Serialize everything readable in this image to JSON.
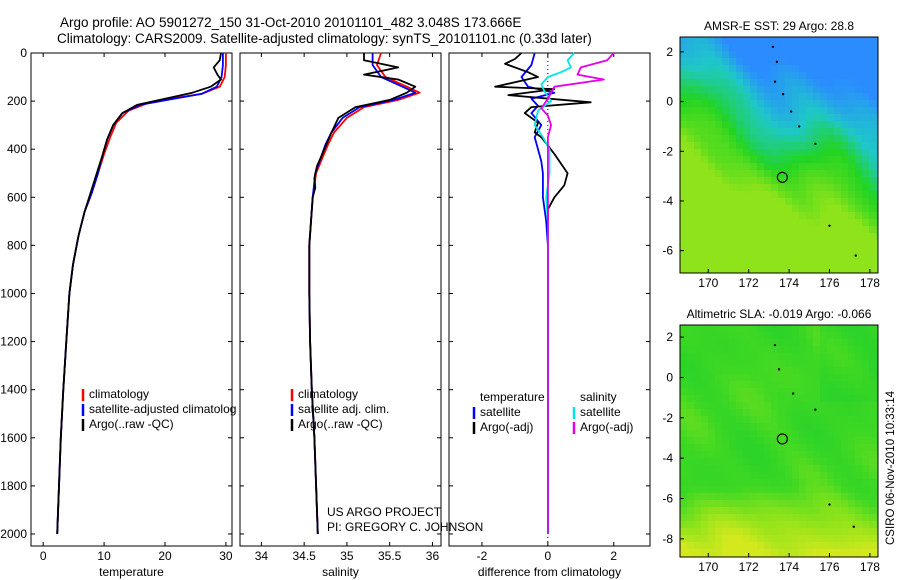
{
  "header": {
    "line1": "Argo profile: AO 5901272_150 31-Oct-2010 20101101_482 3.048S 173.666E",
    "line2": "Climatology: CARS2009. Satellite-adjusted climatology: synTS_20101101.nc (0.33d later)"
  },
  "credits": {
    "project": "US ARGO PROJECT",
    "pi": "PI: GREGORY C. JOHNSON",
    "stamp": "CSIRO 06-Nov-2010 10:33:14"
  },
  "colors": {
    "climatology": "#ff0000",
    "satellite": "#0000ff",
    "argo": "#000000",
    "sal_satellite": "#00e5e5",
    "sal_argo": "#e600e6"
  },
  "chart_data": [
    {
      "type": "line",
      "id": "temperature",
      "title": "",
      "xlabel": "temperature",
      "ylabel": "",
      "xlim": [
        -2,
        31
      ],
      "ylim": [
        2050,
        0
      ],
      "xticks": [
        "0",
        "10",
        "20",
        "30"
      ],
      "xtick_values": [
        0,
        10,
        20,
        30
      ],
      "yticks": [
        "0",
        "200",
        "400",
        "600",
        "800",
        "1000",
        "1200",
        "1400",
        "1600",
        "1800",
        "2000"
      ],
      "ytick_values": [
        0,
        200,
        400,
        600,
        800,
        1000,
        1200,
        1400,
        1600,
        1800,
        2000
      ],
      "legend": [
        "climatology",
        "satellite-adjusted climatolog",
        "Argo(..raw -QC)"
      ],
      "series": [
        {
          "name": "climatology",
          "color": "#ff0000",
          "points": [
            [
              30.0,
              0
            ],
            [
              30.0,
              50
            ],
            [
              29.8,
              100
            ],
            [
              29.0,
              140
            ],
            [
              26.0,
              170
            ],
            [
              21.0,
              190
            ],
            [
              17.0,
              210
            ],
            [
              14.0,
              240
            ],
            [
              12.0,
              290
            ],
            [
              11.0,
              350
            ],
            [
              10.0,
              420
            ],
            [
              9.0,
              500
            ],
            [
              8.0,
              580
            ],
            [
              6.8,
              660
            ],
            [
              5.8,
              760
            ],
            [
              4.9,
              880
            ],
            [
              4.3,
              1000
            ],
            [
              3.8,
              1200
            ],
            [
              3.3,
              1400
            ],
            [
              2.9,
              1600
            ],
            [
              2.6,
              1800
            ],
            [
              2.3,
              2000
            ]
          ]
        },
        {
          "name": "satellite-adjusted climatology",
          "color": "#0000ff",
          "points": [
            [
              29.5,
              0
            ],
            [
              29.5,
              50
            ],
            [
              29.3,
              100
            ],
            [
              28.5,
              140
            ],
            [
              26.0,
              170
            ],
            [
              21.0,
              192
            ],
            [
              16.0,
              215
            ],
            [
              13.0,
              250
            ],
            [
              11.5,
              300
            ],
            [
              10.5,
              360
            ],
            [
              9.8,
              420
            ],
            [
              9.0,
              500
            ],
            [
              8.0,
              580
            ],
            [
              6.8,
              660
            ],
            [
              5.8,
              760
            ],
            [
              4.9,
              880
            ],
            [
              4.3,
              1000
            ],
            [
              3.8,
              1200
            ],
            [
              3.3,
              1400
            ],
            [
              2.9,
              1600
            ],
            [
              2.6,
              1800
            ],
            [
              2.3,
              2000
            ]
          ]
        },
        {
          "name": "Argo(..raw -QC)",
          "color": "#000000",
          "points": [
            [
              29.2,
              0
            ],
            [
              29.0,
              30
            ],
            [
              28.0,
              60
            ],
            [
              28.6,
              90
            ],
            [
              29.2,
              110
            ],
            [
              27.5,
              140
            ],
            [
              24.5,
              165
            ],
            [
              20.0,
              190
            ],
            [
              15.5,
              215
            ],
            [
              13.0,
              250
            ],
            [
              11.5,
              300
            ],
            [
              10.5,
              360
            ],
            [
              9.8,
              420
            ],
            [
              8.8,
              500
            ],
            [
              7.8,
              580
            ],
            [
              6.8,
              660
            ],
            [
              5.8,
              760
            ],
            [
              4.9,
              880
            ],
            [
              4.3,
              1000
            ],
            [
              3.8,
              1200
            ],
            [
              3.3,
              1400
            ],
            [
              2.9,
              1600
            ],
            [
              2.6,
              1800
            ],
            [
              2.3,
              2000
            ]
          ]
        }
      ]
    },
    {
      "type": "line",
      "id": "salinity",
      "title": "",
      "xlabel": "salinity",
      "ylabel": "",
      "xlim": [
        33.75,
        36.1
      ],
      "ylim": [
        2050,
        0
      ],
      "xticks": [
        "34",
        "34.5",
        "35",
        "35.5",
        "36"
      ],
      "xtick_values": [
        34,
        34.5,
        35,
        35.5,
        36
      ],
      "legend": [
        "climatology",
        "satellite adj. clim.",
        "Argo(..raw -QC)"
      ],
      "series": [
        {
          "name": "climatology",
          "color": "#ff0000",
          "points": [
            [
              35.4,
              0
            ],
            [
              35.35,
              50
            ],
            [
              35.45,
              100
            ],
            [
              35.7,
              140
            ],
            [
              35.85,
              165
            ],
            [
              35.6,
              195
            ],
            [
              35.2,
              225
            ],
            [
              35.0,
              270
            ],
            [
              34.85,
              330
            ],
            [
              34.78,
              380
            ],
            [
              34.72,
              430
            ],
            [
              34.64,
              500
            ],
            [
              34.6,
              600
            ],
            [
              34.58,
              700
            ],
            [
              34.56,
              800
            ],
            [
              34.56,
              1000
            ],
            [
              34.57,
              1200
            ],
            [
              34.59,
              1400
            ],
            [
              34.62,
              1600
            ],
            [
              34.64,
              1800
            ],
            [
              34.66,
              2000
            ]
          ]
        },
        {
          "name": "satellite adj. clim.",
          "color": "#0000ff",
          "points": [
            [
              35.3,
              0
            ],
            [
              35.3,
              50
            ],
            [
              35.4,
              100
            ],
            [
              35.65,
              140
            ],
            [
              35.8,
              165
            ],
            [
              35.55,
              195
            ],
            [
              35.15,
              225
            ],
            [
              34.95,
              270
            ],
            [
              34.82,
              330
            ],
            [
              34.75,
              380
            ],
            [
              34.7,
              430
            ],
            [
              34.63,
              500
            ],
            [
              34.6,
              600
            ],
            [
              34.58,
              700
            ],
            [
              34.56,
              800
            ],
            [
              34.56,
              1000
            ],
            [
              34.57,
              1200
            ],
            [
              34.59,
              1400
            ],
            [
              34.62,
              1600
            ],
            [
              34.64,
              1800
            ],
            [
              34.66,
              2000
            ]
          ]
        },
        {
          "name": "Argo(..raw -QC)",
          "color": "#000000",
          "points": [
            [
              35.2,
              0
            ],
            [
              35.2,
              30
            ],
            [
              35.6,
              60
            ],
            [
              35.2,
              90
            ],
            [
              35.6,
              110
            ],
            [
              35.8,
              140
            ],
            [
              35.7,
              165
            ],
            [
              35.5,
              195
            ],
            [
              35.1,
              225
            ],
            [
              34.9,
              270
            ],
            [
              34.82,
              330
            ],
            [
              34.76,
              380
            ],
            [
              34.7,
              430
            ],
            [
              34.65,
              470
            ],
            [
              34.62,
              520
            ],
            [
              34.63,
              560
            ],
            [
              34.6,
              600
            ],
            [
              34.58,
              700
            ],
            [
              34.56,
              800
            ],
            [
              34.56,
              1000
            ],
            [
              34.57,
              1200
            ],
            [
              34.59,
              1400
            ],
            [
              34.62,
              1600
            ],
            [
              34.64,
              1800
            ],
            [
              34.66,
              2000
            ]
          ]
        }
      ]
    },
    {
      "type": "line",
      "id": "difference",
      "title": "",
      "xlabel": "difference from climatology",
      "ylabel": "",
      "xlim": [
        -3,
        3.1
      ],
      "ylim": [
        2050,
        0
      ],
      "xticks": [
        "-2",
        "0",
        "2"
      ],
      "xtick_values": [
        -2,
        0,
        2
      ],
      "legend_groups": [
        {
          "heading": "temperature",
          "items": [
            "satellite",
            "Argo(-adj)"
          ]
        },
        {
          "heading": "salinity",
          "items": [
            "satellite",
            "Argo(-adj)"
          ]
        }
      ],
      "series": [
        {
          "name": "temperature satellite",
          "color": "#0000ff",
          "points": [
            [
              -0.4,
              0
            ],
            [
              -0.5,
              50
            ],
            [
              -0.8,
              100
            ],
            [
              -0.6,
              140
            ],
            [
              0.2,
              165
            ],
            [
              -0.5,
              190
            ],
            [
              -0.3,
              220
            ],
            [
              -0.5,
              250
            ],
            [
              -0.2,
              300
            ],
            [
              -0.4,
              350
            ],
            [
              -0.3,
              400
            ],
            [
              -0.2,
              450
            ],
            [
              -0.15,
              500
            ],
            [
              -0.15,
              600
            ],
            [
              -0.05,
              700
            ],
            [
              0.0,
              800
            ],
            [
              0.0,
              2000
            ]
          ]
        },
        {
          "name": "temperature Argo(-adj)",
          "color": "#000000",
          "points": [
            [
              -0.8,
              0
            ],
            [
              -1.0,
              25
            ],
            [
              -1.3,
              45
            ],
            [
              -0.6,
              80
            ],
            [
              -0.3,
              100
            ],
            [
              -1.6,
              140
            ],
            [
              0.2,
              150
            ],
            [
              -1.2,
              175
            ],
            [
              1.3,
              205
            ],
            [
              -0.5,
              225
            ],
            [
              -0.7,
              250
            ],
            [
              -0.3,
              290
            ],
            [
              -0.4,
              330
            ],
            [
              -0.2,
              350
            ],
            [
              0.2,
              420
            ],
            [
              0.6,
              500
            ],
            [
              0.5,
              550
            ],
            [
              0.2,
              600
            ],
            [
              0.0,
              650
            ],
            [
              0.0,
              2000
            ]
          ]
        },
        {
          "name": "salinity satellite",
          "color": "#00e5e5",
          "points": [
            [
              0.8,
              0
            ],
            [
              0.6,
              30
            ],
            [
              0.7,
              60
            ],
            [
              0.4,
              80
            ],
            [
              0.0,
              100
            ],
            [
              -0.2,
              130
            ],
            [
              -0.1,
              160
            ],
            [
              0.1,
              200
            ],
            [
              -0.3,
              240
            ],
            [
              -0.4,
              300
            ],
            [
              -0.15,
              350
            ],
            [
              0.05,
              400
            ],
            [
              0.05,
              500
            ],
            [
              -0.05,
              600
            ],
            [
              0.0,
              700
            ],
            [
              0.0,
              2000
            ]
          ]
        },
        {
          "name": "salinity Argo(-adj)",
          "color": "#e600e6",
          "points": [
            [
              2.0,
              0
            ],
            [
              1.8,
              30
            ],
            [
              1.0,
              60
            ],
            [
              0.9,
              90
            ],
            [
              1.7,
              110
            ],
            [
              0.2,
              140
            ],
            [
              0.0,
              190
            ],
            [
              -0.2,
              230
            ],
            [
              0.0,
              260
            ],
            [
              0.1,
              300
            ],
            [
              0.0,
              350
            ],
            [
              0.0,
              2000
            ]
          ]
        }
      ]
    },
    {
      "type": "heatmap",
      "id": "amsre",
      "title": "AMSR-E SST: 29 Argo: 28.8",
      "xlim": [
        168.6,
        178.4
      ],
      "ylim": [
        -6.9,
        2.6
      ],
      "xticks": [
        "170",
        "172",
        "174",
        "176",
        "178"
      ],
      "xtick_values": [
        170,
        172,
        174,
        176,
        178
      ],
      "yticks": [
        "2",
        "0",
        "-2",
        "-4",
        "-6"
      ],
      "ytick_values": [
        2,
        0,
        -2,
        -4,
        -6
      ],
      "float_position": [
        173.666,
        -3.048
      ],
      "track": [
        [
          173.2,
          2.2
        ],
        [
          173.4,
          1.6
        ],
        [
          173.3,
          0.8
        ],
        [
          173.7,
          0.3
        ],
        [
          174.1,
          -0.4
        ],
        [
          174.5,
          -1.0
        ],
        [
          175.3,
          -1.7
        ],
        [
          176.0,
          -5.0
        ],
        [
          177.3,
          -6.2
        ]
      ],
      "color_scale": [
        "#2a8cff",
        "#1ec8c8",
        "#22d422",
        "#8ee31a"
      ]
    },
    {
      "type": "heatmap",
      "id": "altimetric",
      "title": "Altimetric SLA: -0.019 Argo: -0.066",
      "xlim": [
        168.6,
        178.4
      ],
      "ylim": [
        -8.9,
        2.6
      ],
      "xticks": [
        "170",
        "172",
        "174",
        "176",
        "178"
      ],
      "xtick_values": [
        170,
        172,
        174,
        176,
        178
      ],
      "yticks": [
        "2",
        "0",
        "-2",
        "-4",
        "-6",
        "-8"
      ],
      "ytick_values": [
        2,
        0,
        -2,
        -4,
        -6,
        -8
      ],
      "float_position": [
        173.666,
        -3.048
      ],
      "track": [
        [
          173.3,
          1.6
        ],
        [
          173.5,
          0.4
        ],
        [
          174.2,
          -0.8
        ],
        [
          175.3,
          -1.6
        ],
        [
          176.0,
          -6.3
        ],
        [
          177.2,
          -7.4
        ]
      ],
      "color_scale": [
        "#1ecf2d",
        "#3fd823",
        "#8fe31a",
        "#d4e81e"
      ]
    }
  ]
}
